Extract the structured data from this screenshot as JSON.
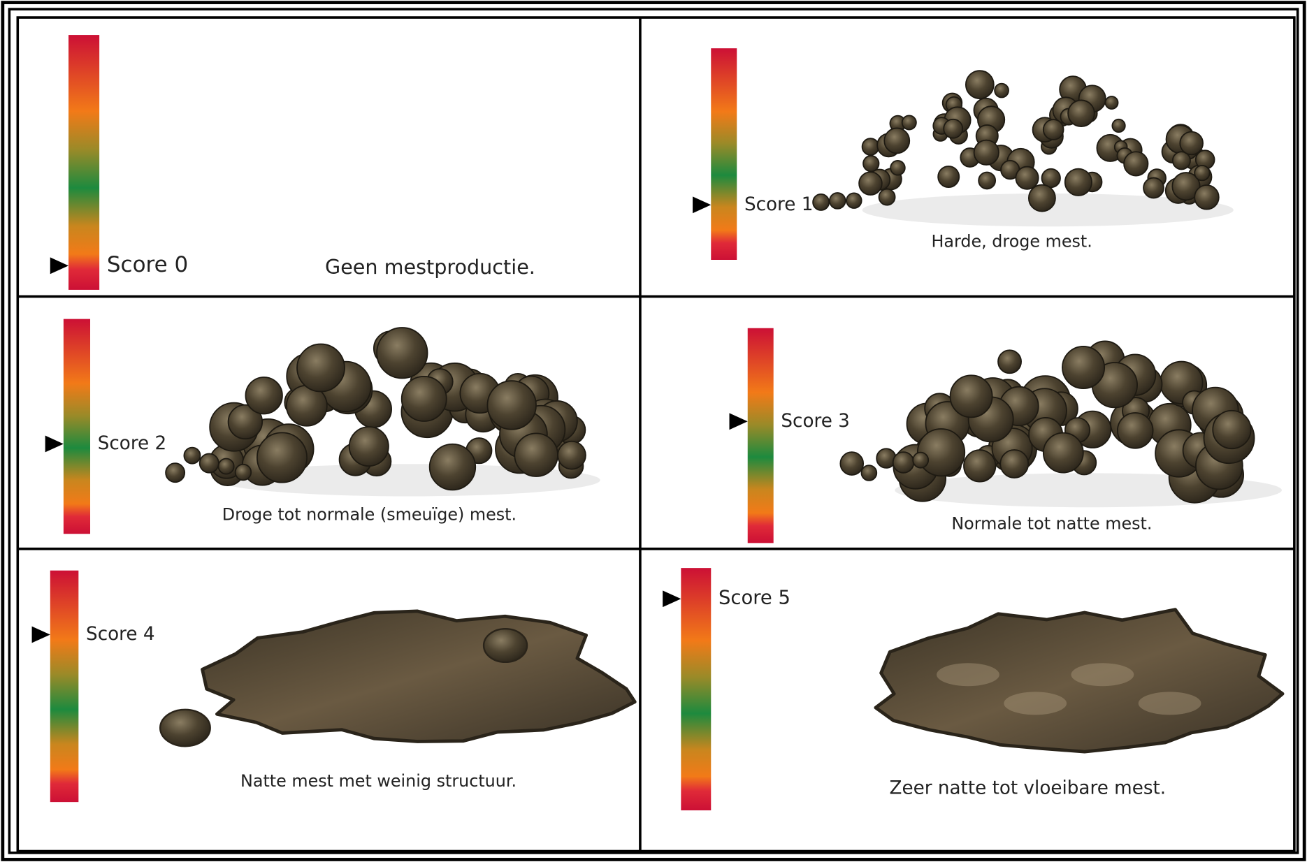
{
  "cells": [
    {
      "score": "Score 0",
      "description": "Geen mestproductie."
    },
    {
      "score": "Score 1",
      "description": "Harde, droge mest."
    },
    {
      "score": "Score 2",
      "description": "Droge tot normale (smeuïge) mest."
    },
    {
      "score": "Score 3",
      "description": "Normale tot natte mest."
    },
    {
      "score": "Score 4",
      "description": "Natte mest met weinig structuur."
    },
    {
      "score": "Score 5",
      "description": "Zeer natte tot vloeibare mest."
    }
  ]
}
